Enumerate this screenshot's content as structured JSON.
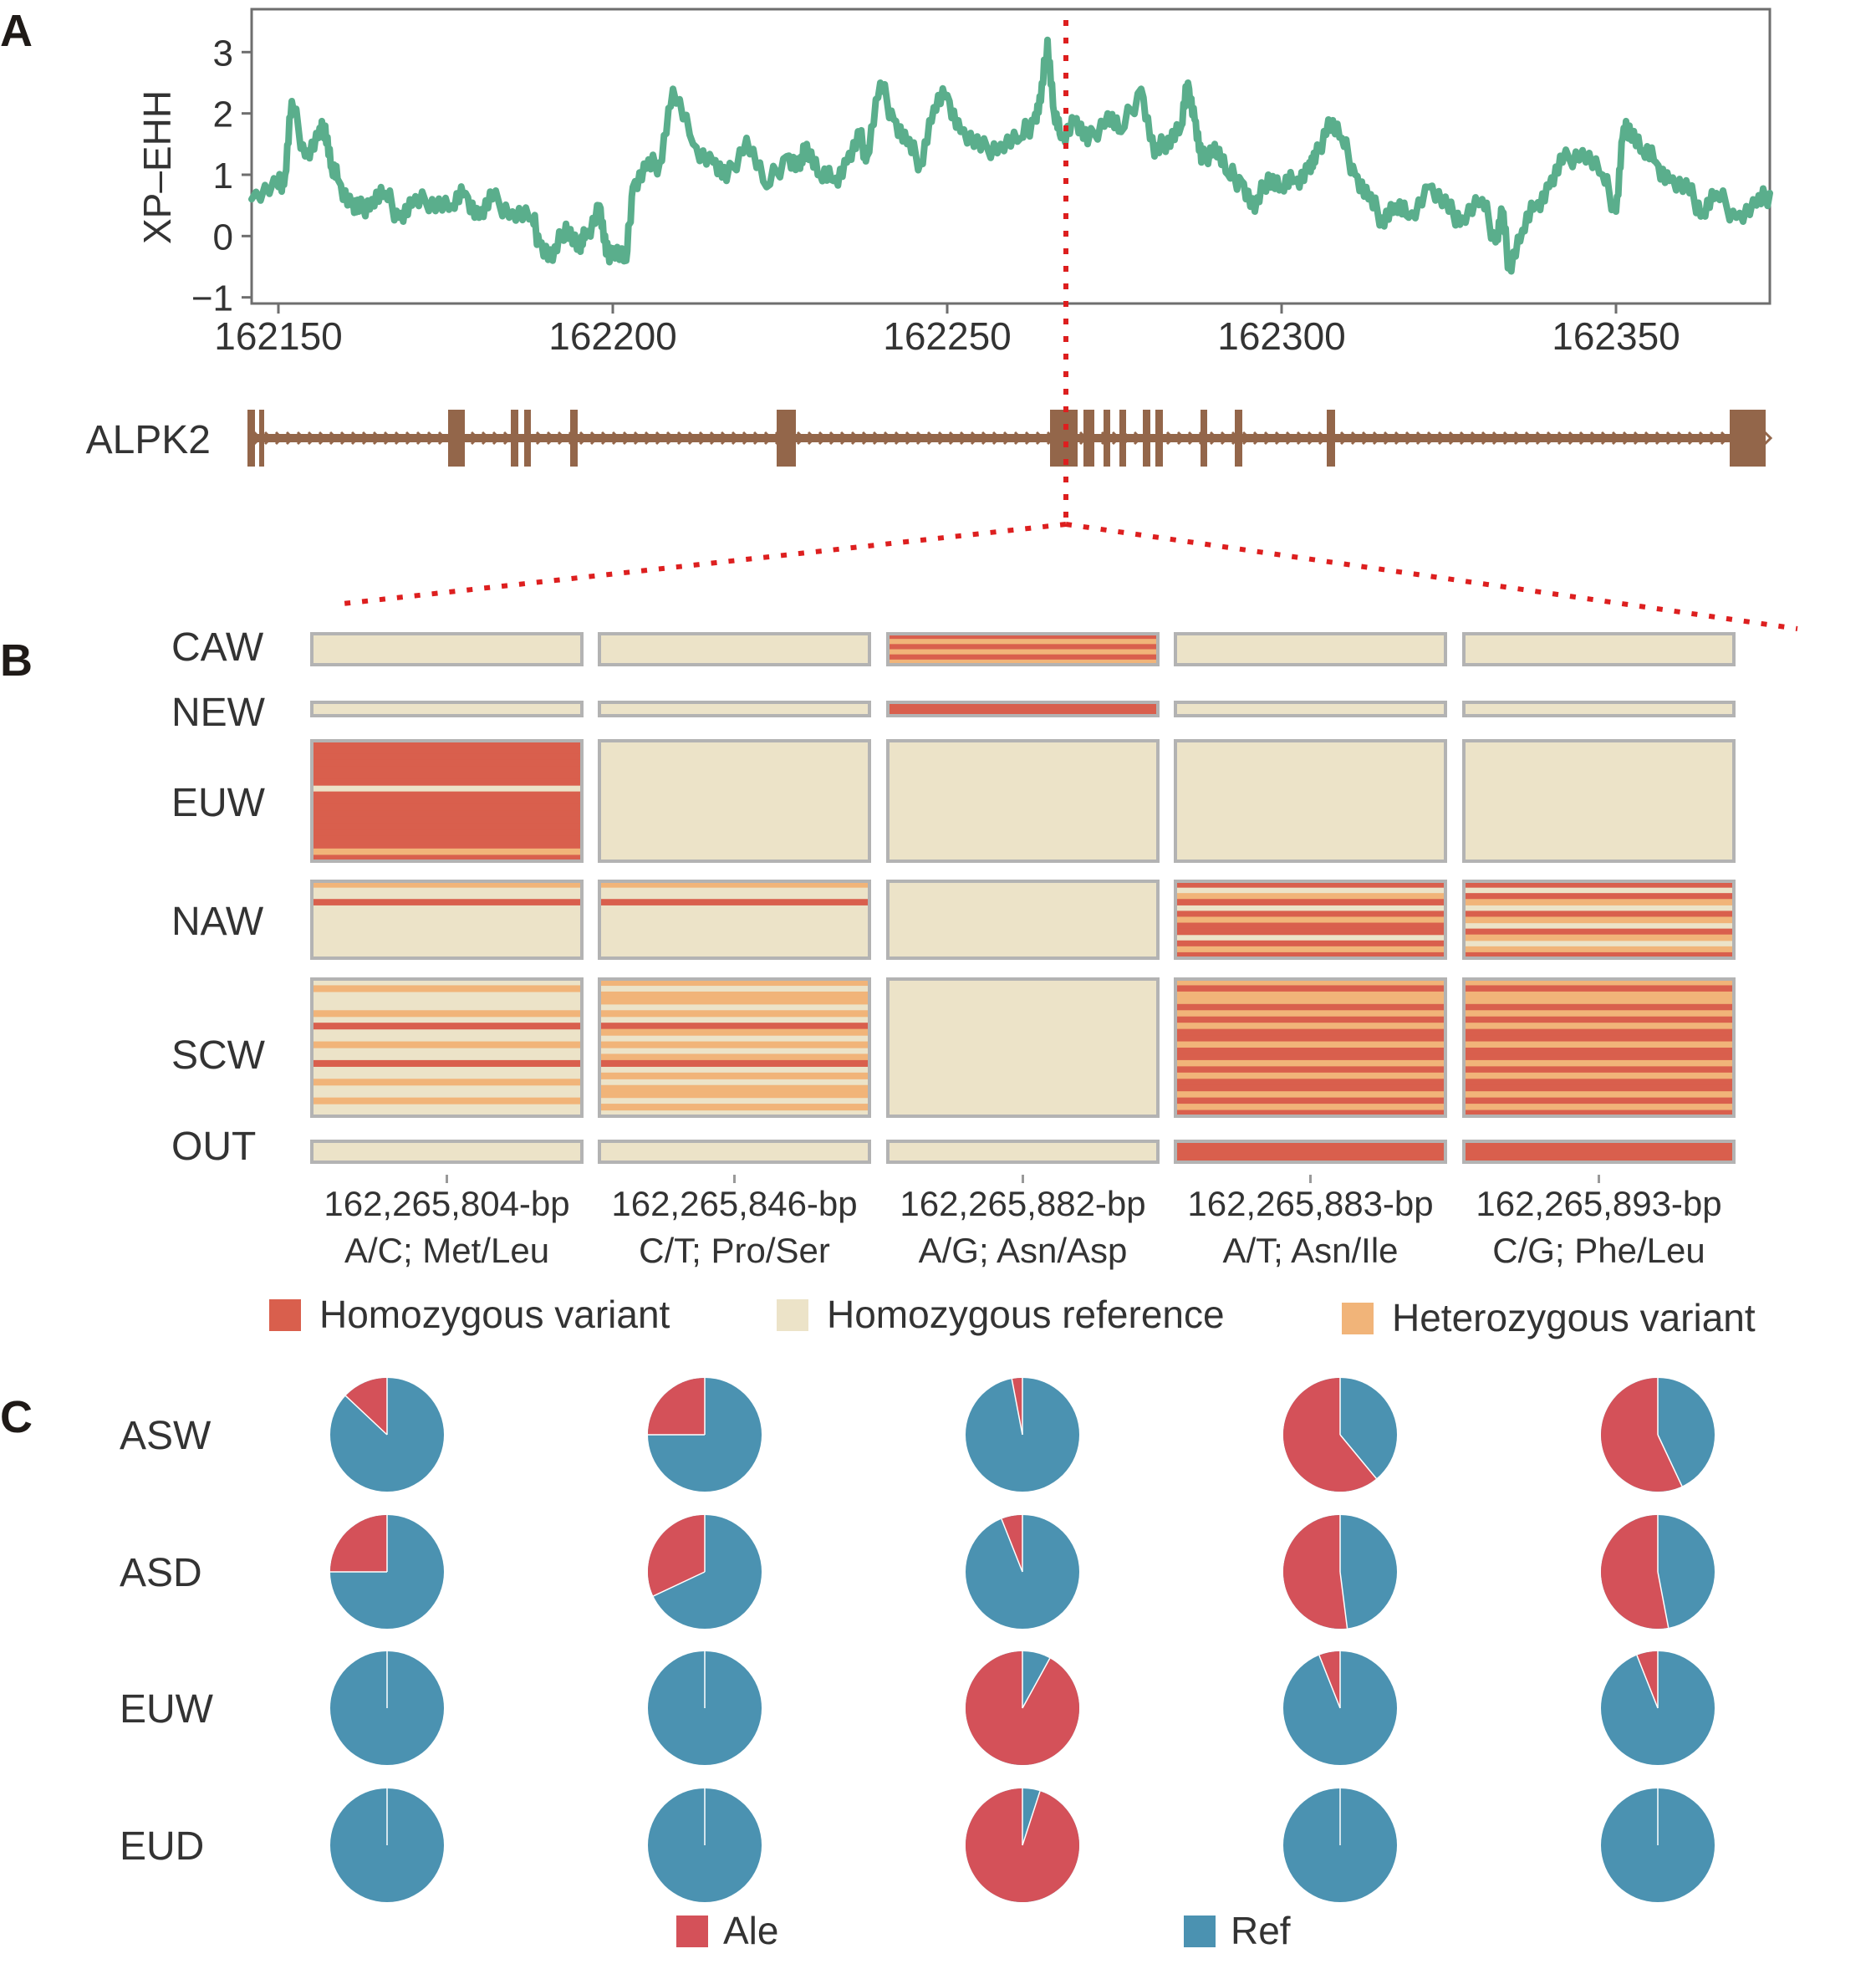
{
  "panels": {
    "a": "A",
    "b": "B",
    "c": "C"
  },
  "colors": {
    "line": "#5aae8c",
    "gene": "#93664a",
    "guide": "#dd1f1f",
    "hom_var": "#d95f4d",
    "hom_ref": "#ece3c8",
    "het_var": "#f1b479",
    "ale": "#d45159",
    "ref": "#4b92b1",
    "frame": "#b3b3b3"
  },
  "chart_data": [
    {
      "panel": "A",
      "type": "line",
      "ylabel": "XP–EHH",
      "xlabel": "",
      "xlim": [
        162146,
        162373
      ],
      "ylim": [
        -1.1,
        3.7
      ],
      "xticks": [
        "162150",
        "162200",
        "162250",
        "162300",
        "162350"
      ],
      "yticks": [
        "−1",
        "0",
        "1",
        "2",
        "3"
      ],
      "grid": false,
      "marker_x": 162265,
      "series": [
        {
          "x": [
            162146,
            162150,
            162151,
            162152,
            162154,
            162156,
            162157,
            162158,
            162159,
            162161,
            162162,
            162164,
            162166,
            162168,
            162170,
            162173,
            162176,
            162178,
            162180,
            162182,
            162185,
            162188,
            162189,
            162191,
            162193,
            162195,
            162196,
            162198,
            162199,
            162200,
            162202,
            162203,
            162205,
            162207,
            162209,
            162212,
            162215,
            162217,
            162220,
            162223,
            162226,
            162228,
            162229,
            162231,
            162233,
            162235,
            162237,
            162238,
            162240,
            162242,
            162244,
            162246,
            162248,
            162250,
            162252,
            162255,
            162258,
            162261,
            162263,
            162264,
            162265,
            162266,
            162267,
            162269,
            162271,
            162274,
            162276,
            162279,
            162281,
            162283,
            162285,
            162286,
            162287,
            162288,
            162290,
            162292,
            162294,
            162296,
            162298,
            162300,
            162302,
            162304,
            162305,
            162307,
            162309,
            162311,
            162313,
            162315,
            162317,
            162319,
            162322,
            162325,
            162327,
            162330,
            162332,
            162333,
            162334,
            162336,
            162338,
            162340,
            162342,
            162345,
            162348,
            162350,
            162351,
            162352,
            162354,
            162356,
            162358,
            162361,
            162363,
            162365,
            162368,
            162371,
            162373
          ],
          "y": [
            0.6,
            0.8,
            1.0,
            2.2,
            1.3,
            1.6,
            1.8,
            1.1,
            0.9,
            0.5,
            0.4,
            0.6,
            0.7,
            0.3,
            0.5,
            0.6,
            0.5,
            0.7,
            0.3,
            0.6,
            0.4,
            0.3,
            -0.1,
            -0.4,
            0.2,
            -0.2,
            0.0,
            0.5,
            -0.3,
            -0.2,
            -0.4,
            0.8,
            1.1,
            1.2,
            2.4,
            1.5,
            1.2,
            0.9,
            1.6,
            0.8,
            1.3,
            1.1,
            1.5,
            1.0,
            0.9,
            1.2,
            1.6,
            1.3,
            2.5,
            1.9,
            1.5,
            1.2,
            2.1,
            2.3,
            1.7,
            1.4,
            1.5,
            1.6,
            1.9,
            2.2,
            3.2,
            2.0,
            1.6,
            1.9,
            1.5,
            2.0,
            1.7,
            2.4,
            1.3,
            1.6,
            1.8,
            2.5,
            1.9,
            1.2,
            1.5,
            1.0,
            0.9,
            0.4,
            1.0,
            0.8,
            0.9,
            1.1,
            1.2,
            1.9,
            1.6,
            1.0,
            0.6,
            0.3,
            0.5,
            0.3,
            0.8,
            0.4,
            0.3,
            0.6,
            -0.1,
            0.4,
            -0.5,
            0.1,
            0.5,
            0.8,
            1.2,
            1.4,
            1.0,
            0.4,
            1.6,
            1.8,
            1.4,
            1.2,
            0.9,
            0.7,
            0.4,
            0.7,
            0.3,
            0.5,
            0.7
          ]
        }
      ]
    },
    {
      "panel": "B",
      "type": "heatmap",
      "rows": [
        "CAW",
        "NEW",
        "EUW",
        "NAW",
        "SCW",
        "OUT"
      ],
      "columns": [
        {
          "pos": "162,265,804-bp",
          "change": "A/C; Met/Leu"
        },
        {
          "pos": "162,265,846-bp",
          "change": "C/T; Pro/Ser"
        },
        {
          "pos": "162,265,882-bp",
          "change": "A/G; Asn/Asp"
        },
        {
          "pos": "162,265,883-bp",
          "change": "A/T; Asn/Ile"
        },
        {
          "pos": "162,265,893-bp",
          "change": "C/G; Phe/Leu"
        }
      ],
      "legend": [
        "Homozygous variant",
        "Homozygous reference",
        "Heterozygous variant"
      ],
      "genotypes": {
        "CAW": [
          [
            "R",
            "R",
            "R",
            "R",
            "R",
            "R"
          ],
          [
            "R",
            "R",
            "R",
            "R",
            "R",
            "R"
          ],
          [
            "V",
            "H",
            "V",
            "H",
            "V",
            "H"
          ],
          [
            "R",
            "R",
            "R",
            "R",
            "R",
            "R"
          ],
          [
            "R",
            "R",
            "R",
            "R",
            "R",
            "R"
          ]
        ],
        "NEW": [
          [
            "R"
          ],
          [
            "R"
          ],
          [
            "V"
          ],
          [
            "R"
          ],
          [
            "R"
          ]
        ],
        "EUW": [
          [
            "V",
            "V",
            "V",
            "V",
            "V",
            "V",
            "V",
            "R",
            "V",
            "V",
            "V",
            "V",
            "V",
            "V",
            "V",
            "V",
            "V",
            "H",
            "V"
          ],
          [
            "R",
            "R",
            "R",
            "R",
            "R",
            "R",
            "R",
            "R",
            "R",
            "R",
            "R",
            "R",
            "R",
            "R",
            "R",
            "R",
            "R",
            "R",
            "R"
          ],
          [
            "R",
            "R",
            "R",
            "R",
            "R",
            "R",
            "R",
            "R",
            "R",
            "R",
            "R",
            "R",
            "R",
            "R",
            "R",
            "R",
            "R",
            "R",
            "R"
          ],
          [
            "R",
            "R",
            "R",
            "R",
            "R",
            "R",
            "R",
            "R",
            "R",
            "R",
            "R",
            "R",
            "R",
            "R",
            "R",
            "R",
            "R",
            "R",
            "R"
          ],
          [
            "R",
            "R",
            "R",
            "R",
            "R",
            "R",
            "R",
            "R",
            "R",
            "R",
            "R",
            "R",
            "R",
            "R",
            "R",
            "R",
            "R",
            "R",
            "R"
          ]
        ],
        "NAW": [
          [
            "H",
            "R",
            "R",
            "V",
            "R",
            "R",
            "R",
            "R",
            "R",
            "R",
            "R",
            "R",
            "R"
          ],
          [
            "H",
            "R",
            "R",
            "V",
            "R",
            "R",
            "R",
            "R",
            "R",
            "R",
            "R",
            "R",
            "R"
          ],
          [
            "R",
            "R",
            "R",
            "R",
            "R",
            "R",
            "R",
            "R",
            "R",
            "R",
            "R",
            "R",
            "R"
          ],
          [
            "V",
            "R",
            "H",
            "V",
            "R",
            "V",
            "H",
            "V",
            "V",
            "R",
            "V",
            "H",
            "V"
          ],
          [
            "V",
            "R",
            "V",
            "H",
            "R",
            "V",
            "H",
            "R",
            "V",
            "H",
            "R",
            "H",
            "V"
          ]
        ],
        "SCW": [
          [
            "R",
            "H",
            "R",
            "R",
            "R",
            "H",
            "R",
            "V",
            "R",
            "R",
            "H",
            "R",
            "R",
            "V",
            "R",
            "R",
            "H",
            "R",
            "R",
            "H",
            "R",
            "R"
          ],
          [
            "H",
            "R",
            "H",
            "H",
            "R",
            "H",
            "R",
            "V",
            "H",
            "R",
            "H",
            "R",
            "H",
            "V",
            "R",
            "H",
            "R",
            "H",
            "H",
            "R",
            "H",
            "R"
          ],
          [
            "R",
            "R",
            "R",
            "R",
            "R",
            "R",
            "R",
            "R",
            "R",
            "R",
            "R",
            "R",
            "R",
            "R",
            "R",
            "R",
            "R",
            "R",
            "R",
            "R",
            "R",
            "R"
          ],
          [
            "H",
            "V",
            "H",
            "H",
            "V",
            "H",
            "V",
            "H",
            "V",
            "V",
            "H",
            "V",
            "V",
            "H",
            "V",
            "H",
            "V",
            "V",
            "H",
            "V",
            "H",
            "V"
          ],
          [
            "H",
            "V",
            "H",
            "H",
            "V",
            "H",
            "V",
            "H",
            "V",
            "V",
            "H",
            "V",
            "V",
            "H",
            "V",
            "H",
            "V",
            "V",
            "H",
            "V",
            "H",
            "V"
          ]
        ],
        "OUT": [
          [
            "R"
          ],
          [
            "R"
          ],
          [
            "R"
          ],
          [
            "V"
          ],
          [
            "V"
          ]
        ]
      }
    },
    {
      "panel": "C",
      "type": "pie",
      "rows": [
        "ASW",
        "ASD",
        "EUW",
        "EUD"
      ],
      "columns": 5,
      "legend": [
        "Ale",
        "Ref"
      ],
      "ale_fraction": [
        [
          0.13,
          0.25,
          0.03,
          0.61,
          0.57
        ],
        [
          0.25,
          0.32,
          0.06,
          0.52,
          0.53
        ],
        [
          0.0,
          0.0,
          0.92,
          0.06,
          0.06
        ],
        [
          0.0,
          0.0,
          0.95,
          0.0,
          0.0
        ]
      ]
    }
  ],
  "gene": {
    "name": "ALPK2"
  }
}
